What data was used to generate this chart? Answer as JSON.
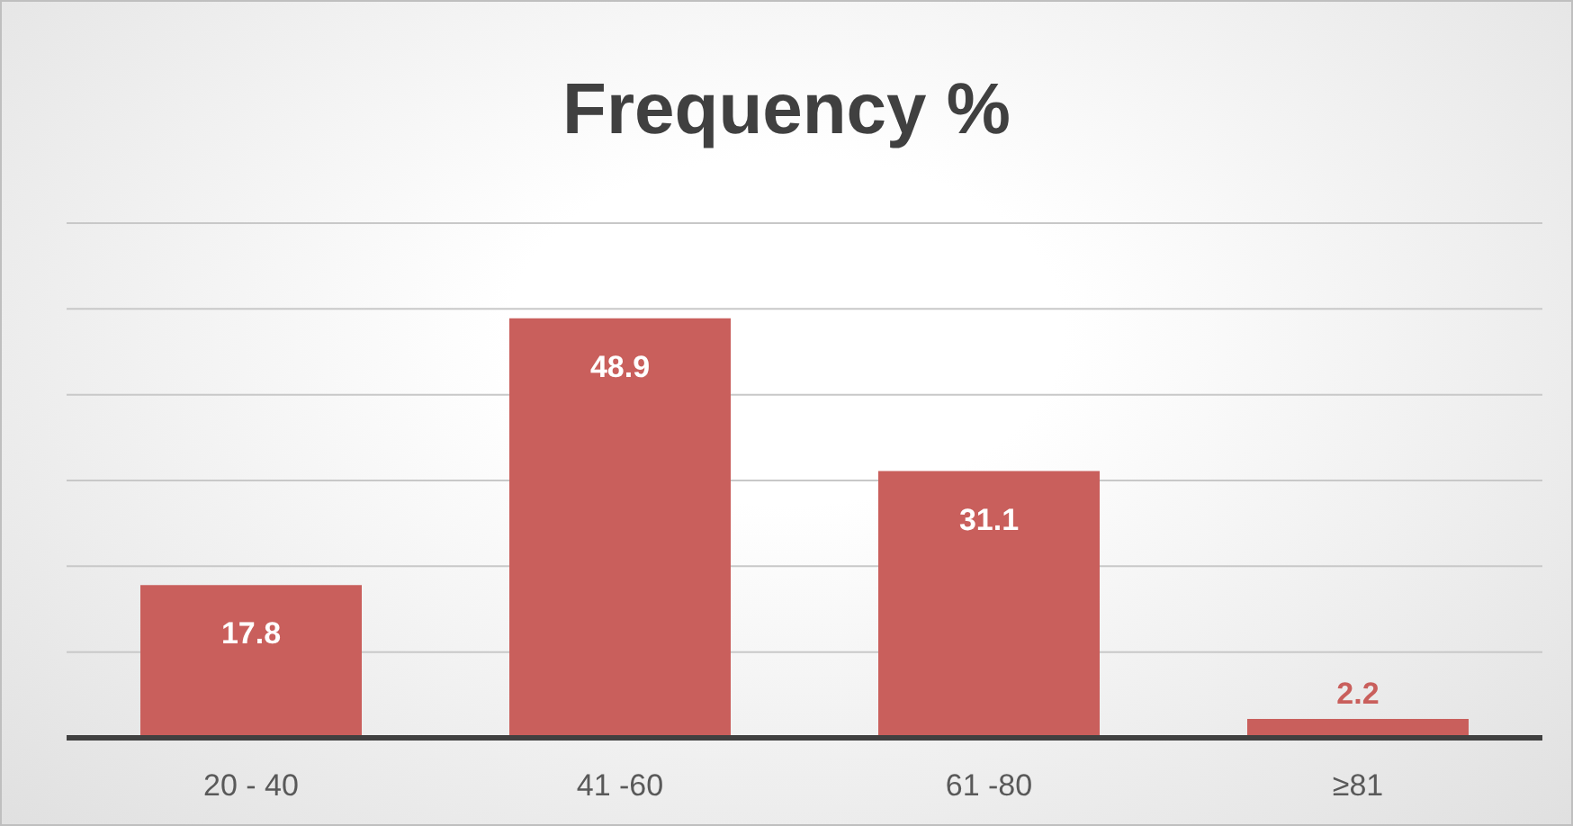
{
  "chart_data": {
    "type": "bar",
    "title": "Frequency %",
    "categories": [
      "20 - 40",
      "41 -60",
      "61 -80",
      "≥81"
    ],
    "values": [
      17.8,
      48.9,
      31.1,
      2.2
    ],
    "color": "#c95f5c",
    "ylim": [
      0,
      60
    ],
    "yticks": [
      {
        "value": 0,
        "label": null
      },
      {
        "value": 10,
        "label": null
      },
      {
        "value": 20,
        "label": null
      },
      {
        "value": 30,
        "label": null
      },
      {
        "value": 40,
        "label": null
      },
      {
        "value": 50,
        "label": null
      },
      {
        "value": 60,
        "label": null
      }
    ],
    "grid": "y",
    "tick_labels": "x",
    "data_labels": true
  }
}
